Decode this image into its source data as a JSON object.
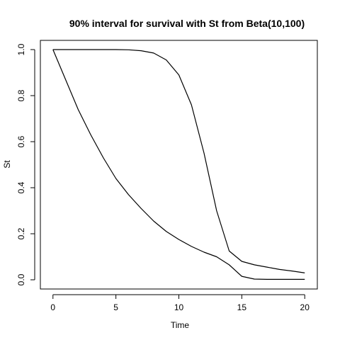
{
  "chart_data": {
    "type": "line",
    "title": "90% interval for survival with St from Beta(10,100)",
    "xlabel": "Time",
    "ylabel": "St",
    "xlim": [
      -1,
      21
    ],
    "ylim": [
      -0.04,
      1.04
    ],
    "xticks": [
      0,
      5,
      10,
      15,
      20
    ],
    "yticks": [
      0.0,
      0.2,
      0.4,
      0.6,
      0.8,
      1.0
    ],
    "xtick_labels": [
      "0",
      "5",
      "10",
      "15",
      "20"
    ],
    "ytick_labels": [
      "0.0",
      "0.2",
      "0.4",
      "0.6",
      "0.8",
      "1.0"
    ],
    "grid": false,
    "legend": "none",
    "line_color": "#000000",
    "x": [
      0,
      1,
      2,
      3,
      4,
      5,
      6,
      7,
      8,
      9,
      10,
      11,
      12,
      13,
      14,
      15,
      16,
      17,
      18,
      19,
      20
    ],
    "series": [
      {
        "values": [
          1.0,
          1.0,
          1.0,
          1.0,
          1.0,
          1.0,
          0.999,
          0.995,
          0.985,
          0.955,
          0.89,
          0.76,
          0.55,
          0.3,
          0.125,
          0.08,
          0.065,
          0.055,
          0.045,
          0.038,
          0.03
        ]
      },
      {
        "values": [
          1.0,
          0.87,
          0.74,
          0.63,
          0.53,
          0.44,
          0.37,
          0.31,
          0.255,
          0.21,
          0.175,
          0.145,
          0.12,
          0.1,
          0.065,
          0.015,
          0.003,
          0.002,
          0.002,
          0.002,
          0.002
        ]
      }
    ]
  }
}
